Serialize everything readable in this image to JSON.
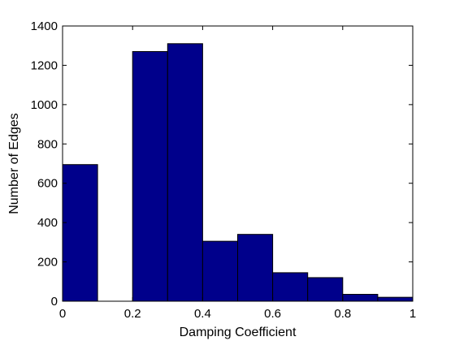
{
  "chart_data": {
    "type": "bar",
    "subtype": "histogram",
    "title": "",
    "xlabel": "Damping Coefficient",
    "ylabel": "Number of Edges",
    "xlim": [
      0,
      1
    ],
    "ylim": [
      0,
      1400
    ],
    "bin_edges": [
      0,
      0.1,
      0.2,
      0.3,
      0.4,
      0.5,
      0.6,
      0.7,
      0.8,
      0.9,
      1.0
    ],
    "values": [
      695,
      0,
      1270,
      1310,
      305,
      340,
      145,
      120,
      35,
      20
    ],
    "xticks": [
      0,
      0.2,
      0.4,
      0.6,
      0.8,
      1
    ],
    "xtick_labels": [
      "0",
      "0.2",
      "0.4",
      "0.6",
      "0.8",
      "1"
    ],
    "yticks": [
      0,
      200,
      400,
      600,
      800,
      1000,
      1200,
      1400
    ],
    "ytick_labels": [
      "0",
      "200",
      "400",
      "600",
      "800",
      "1000",
      "1200",
      "1400"
    ],
    "bar_color": "#00008B",
    "edge_color": "#000000",
    "grid": false,
    "legend": "none"
  }
}
